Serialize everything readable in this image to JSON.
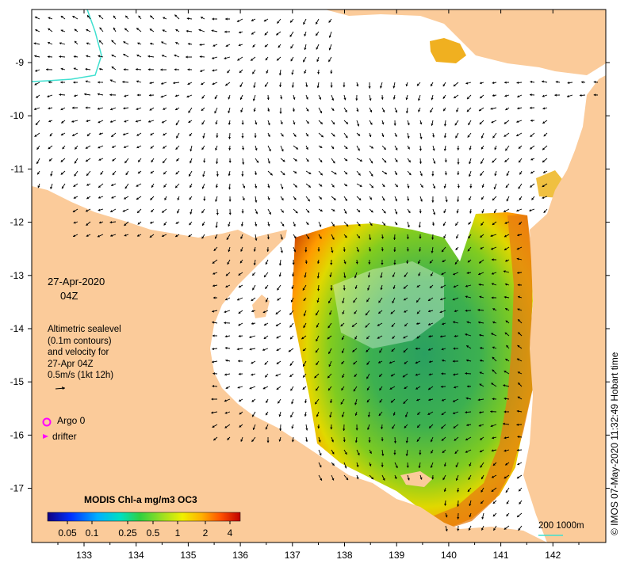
{
  "date_label": "27-Apr-2020",
  "time_label": "04Z",
  "legend_text": {
    "line1": "Altimetric sealevel",
    "line2": "(0.1m contours)",
    "line3": "and velocity for",
    "line4": "27-Apr 04Z",
    "line5": "0.5m/s (1kt 12h)"
  },
  "argo_label": "Argo 0",
  "drifter_label": "drifter",
  "colorbar": {
    "title": "MODIS Chl-a mg/m3 OC3",
    "tick_labels": [
      "0.05",
      "0.1",
      "0.25",
      "0.5",
      "1",
      "2",
      "4"
    ]
  },
  "scale_label": "200  1000m",
  "credit": "© IMOS 07-May-2020 11:32:49 Hobart time",
  "axes": {
    "lon_ticks": [
      "133",
      "134",
      "135",
      "136",
      "137",
      "138",
      "139",
      "140",
      "141",
      "142"
    ],
    "lat_ticks": [
      "-9",
      "-10",
      "-11",
      "-12",
      "-13",
      "-14",
      "-15",
      "-16",
      "-17"
    ]
  },
  "colors": {
    "land": "#fbcb9a",
    "sea": "#ffffff",
    "argo": "#ff00ff",
    "contour_200m": "#40e0d0"
  }
}
